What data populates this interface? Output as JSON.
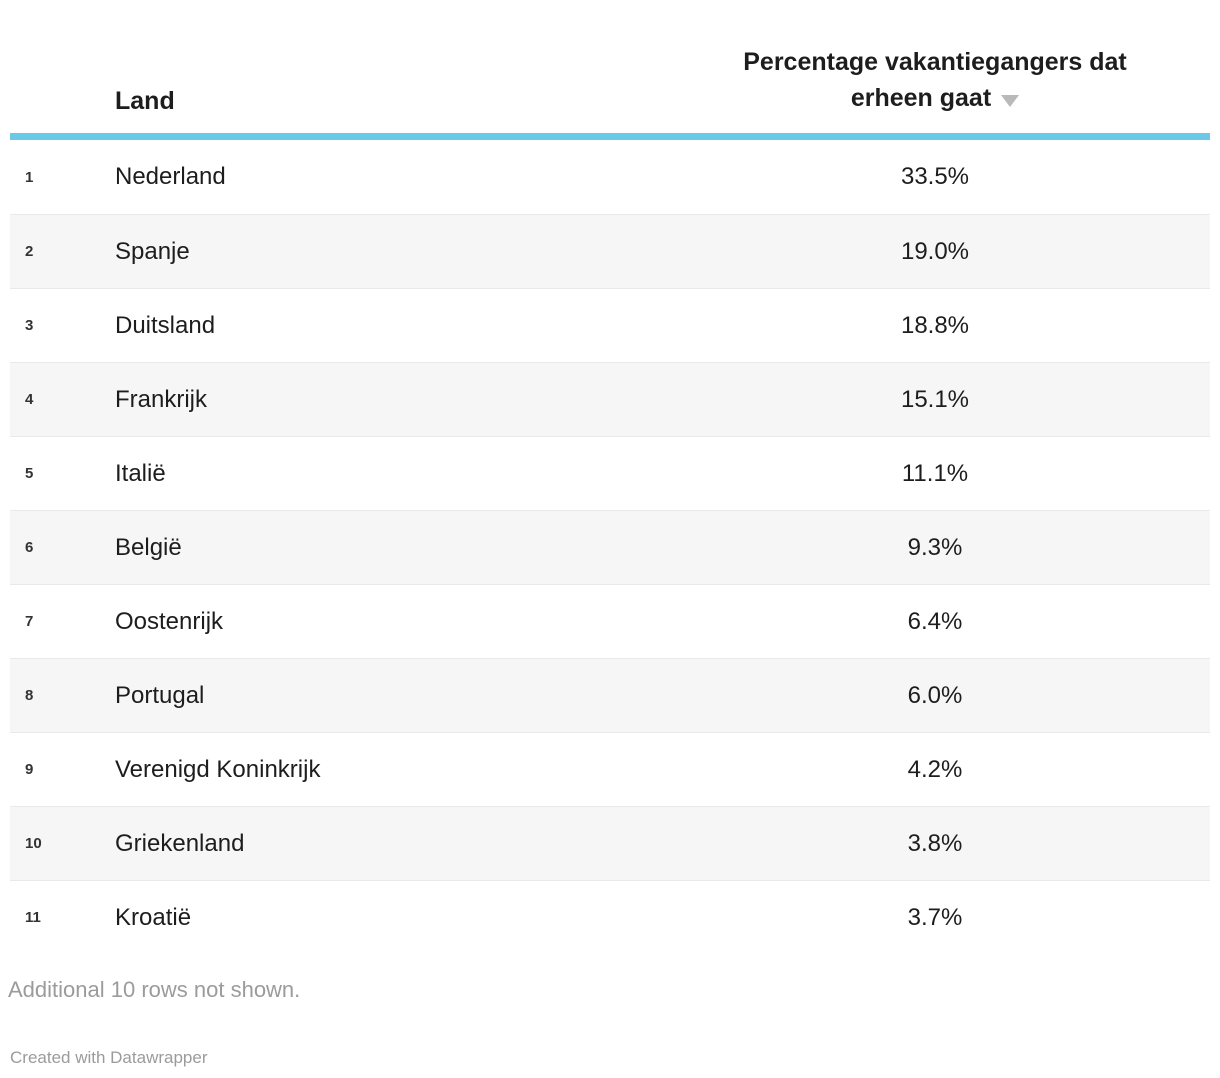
{
  "table": {
    "header": {
      "land_label": "Land",
      "value_label_line1": "Percentage vakantiegangers dat",
      "value_label_line2": "erheen gaat",
      "sort_icon": "triangle-down",
      "sort_direction": "descending"
    },
    "rows": [
      {
        "rank": "1",
        "land": "Nederland",
        "value": "33.5%"
      },
      {
        "rank": "2",
        "land": "Spanje",
        "value": "19.0%"
      },
      {
        "rank": "3",
        "land": "Duitsland",
        "value": "18.8%"
      },
      {
        "rank": "4",
        "land": "Frankrijk",
        "value": "15.1%"
      },
      {
        "rank": "5",
        "land": "Italië",
        "value": "11.1%"
      },
      {
        "rank": "6",
        "land": "België",
        "value": "9.3%"
      },
      {
        "rank": "7",
        "land": "Oostenrijk",
        "value": "6.4%"
      },
      {
        "rank": "8",
        "land": "Portugal",
        "value": "6.0%"
      },
      {
        "rank": "9",
        "land": "Verenigd Koninkrijk",
        "value": "4.2%"
      },
      {
        "rank": "10",
        "land": "Griekenland",
        "value": "3.8%"
      },
      {
        "rank": "11",
        "land": "Kroatië",
        "value": "3.7%"
      }
    ]
  },
  "footer": {
    "note": "Additional 10 rows not shown.",
    "attribution": "Created with Datawrapper"
  },
  "colors": {
    "header_rule": "#6bc9e8",
    "stripe_row": "#f6f6f6",
    "row_border": "#e9e9e9",
    "text": "#1d1d1d",
    "muted_text": "#9b9b9b",
    "sort_arrow": "#b9b9b9"
  },
  "chart_data": {
    "type": "table",
    "title": "",
    "columns": [
      "Land",
      "Percentage vakantiegangers dat erheen gaat"
    ],
    "rows": [
      [
        "Nederland",
        33.5
      ],
      [
        "Spanje",
        19.0
      ],
      [
        "Duitsland",
        18.8
      ],
      [
        "Frankrijk",
        15.1
      ],
      [
        "Italië",
        11.1
      ],
      [
        "België",
        9.3
      ],
      [
        "Oostenrijk",
        6.4
      ],
      [
        "Portugal",
        6.0
      ],
      [
        "Verenigd Koninkrijk",
        4.2
      ],
      [
        "Griekenland",
        3.8
      ],
      [
        "Kroatië",
        3.7
      ]
    ],
    "value_unit": "%",
    "sort": {
      "column": "Percentage vakantiegangers dat erheen gaat",
      "direction": "desc"
    },
    "rows_hidden_note": "Additional 10 rows not shown."
  }
}
